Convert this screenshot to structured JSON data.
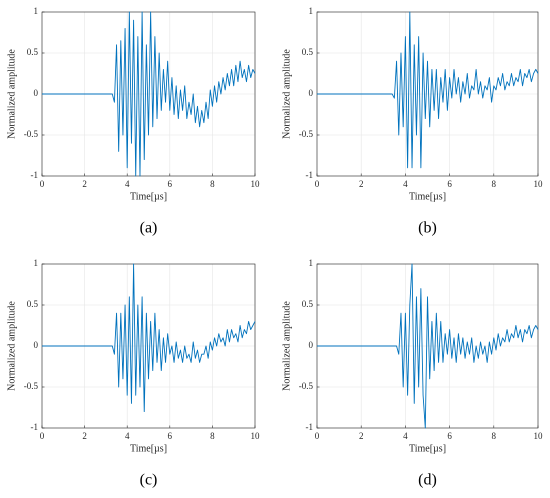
{
  "chart_data": [
    {
      "type": "line",
      "caption": "(a)",
      "xlabel": "Time[µs]",
      "ylabel": "Normalized amplitude",
      "color": "#0072bd",
      "grid": true,
      "xlim": [
        0,
        10
      ],
      "xticks": [
        0,
        2,
        4,
        6,
        8,
        10
      ],
      "ylim": [
        -1,
        1
      ],
      "yticks": [
        -1,
        -0.5,
        0,
        0.5,
        1
      ],
      "x": [
        0,
        3.3,
        3.4,
        3.5,
        3.6,
        3.7,
        3.8,
        3.9,
        4.0,
        4.1,
        4.2,
        4.3,
        4.4,
        4.5,
        4.6,
        4.7,
        4.8,
        4.9,
        5.0,
        5.1,
        5.2,
        5.3,
        5.4,
        5.5,
        5.6,
        5.7,
        5.8,
        5.9,
        6.0,
        6.1,
        6.2,
        6.3,
        6.4,
        6.5,
        6.6,
        6.7,
        6.8,
        6.9,
        7.0,
        7.1,
        7.2,
        7.3,
        7.4,
        7.5,
        7.6,
        7.7,
        7.8,
        7.9,
        8.0,
        8.1,
        8.2,
        8.3,
        8.4,
        8.5,
        8.6,
        8.7,
        8.8,
        8.9,
        9.0,
        9.1,
        9.2,
        9.3,
        9.4,
        9.5,
        9.6,
        9.7,
        9.8,
        9.9,
        10.0
      ],
      "values": [
        0,
        0,
        -0.1,
        0.6,
        -0.7,
        0.65,
        -0.5,
        0.8,
        -0.9,
        1,
        -0.6,
        0.9,
        -1,
        0.7,
        -1,
        1,
        -0.8,
        0.6,
        -0.5,
        1,
        -0.4,
        0.7,
        -0.3,
        0.5,
        -0.2,
        0.3,
        -0.1,
        0.4,
        -0.2,
        0.2,
        -0.25,
        0.1,
        -0.3,
        0.05,
        -0.2,
        0.1,
        -0.3,
        -0.1,
        -0.25,
        0,
        -0.35,
        -0.15,
        -0.4,
        -0.2,
        -0.35,
        -0.1,
        -0.3,
        0.05,
        -0.15,
        0.1,
        -0.1,
        0.15,
        0,
        0.2,
        0.05,
        0.25,
        0.1,
        0.3,
        0.1,
        0.35,
        0.15,
        0.4,
        0.2,
        0.3,
        0.15,
        0.35,
        0.2,
        0.3,
        0.25
      ]
    },
    {
      "type": "line",
      "caption": "(b)",
      "xlabel": "Time[µs]",
      "ylabel": "Normalized amplitude",
      "color": "#0072bd",
      "grid": true,
      "xlim": [
        0,
        10
      ],
      "xticks": [
        0,
        2,
        4,
        6,
        8,
        10
      ],
      "ylim": [
        -1,
        1
      ],
      "yticks": [
        -1,
        -0.5,
        0,
        0.5,
        1
      ],
      "x": [
        0,
        3.3,
        3.4,
        3.5,
        3.6,
        3.7,
        3.8,
        3.9,
        4.0,
        4.1,
        4.2,
        4.3,
        4.4,
        4.5,
        4.6,
        4.7,
        4.8,
        4.9,
        5.0,
        5.1,
        5.2,
        5.3,
        5.4,
        5.5,
        5.6,
        5.7,
        5.8,
        5.9,
        6.0,
        6.1,
        6.2,
        6.3,
        6.4,
        6.5,
        6.6,
        6.7,
        6.8,
        6.9,
        7.0,
        7.1,
        7.2,
        7.3,
        7.4,
        7.5,
        7.6,
        7.7,
        7.8,
        7.9,
        8.0,
        8.1,
        8.2,
        8.3,
        8.4,
        8.5,
        8.6,
        8.7,
        8.8,
        8.9,
        9.0,
        9.1,
        9.2,
        9.3,
        9.4,
        9.5,
        9.6,
        9.7,
        9.8,
        9.9,
        10.0
      ],
      "values": [
        0,
        0,
        0,
        -0.05,
        0.4,
        -0.5,
        0.5,
        -0.4,
        0.7,
        -0.9,
        1,
        -0.9,
        0.6,
        -0.5,
        0.7,
        -0.9,
        0.5,
        -0.3,
        0.4,
        -0.4,
        0.3,
        -0.2,
        0.3,
        -0.3,
        0.2,
        -0.1,
        0.3,
        -0.2,
        0.2,
        -0.05,
        0.3,
        0,
        0.2,
        -0.1,
        0.15,
        0,
        0.25,
        -0.05,
        0.1,
        0.05,
        0.3,
        0,
        0.15,
        -0.05,
        0.1,
        0.05,
        0.2,
        -0.1,
        0.1,
        0.05,
        0.2,
        0.1,
        0.25,
        0.05,
        0.15,
        0.1,
        0.25,
        0.1,
        0.2,
        0.15,
        0.3,
        0.1,
        0.25,
        0.2,
        0.3,
        0.15,
        0.25,
        0.3,
        0.25
      ]
    },
    {
      "type": "line",
      "caption": "(c)",
      "xlabel": "Time[µs]",
      "ylabel": "Normalized amplitude",
      "color": "#0072bd",
      "grid": true,
      "xlim": [
        0,
        10
      ],
      "xticks": [
        0,
        2,
        4,
        6,
        8,
        10
      ],
      "ylim": [
        -1,
        1
      ],
      "yticks": [
        -1,
        -0.5,
        0,
        0.5,
        1
      ],
      "x": [
        0,
        3.3,
        3.4,
        3.5,
        3.6,
        3.7,
        3.8,
        3.9,
        4.0,
        4.1,
        4.2,
        4.3,
        4.4,
        4.5,
        4.6,
        4.7,
        4.8,
        4.9,
        5.0,
        5.1,
        5.2,
        5.3,
        5.4,
        5.5,
        5.6,
        5.7,
        5.8,
        5.9,
        6.0,
        6.1,
        6.2,
        6.3,
        6.4,
        6.5,
        6.6,
        6.7,
        6.8,
        6.9,
        7.0,
        7.1,
        7.2,
        7.3,
        7.4,
        7.5,
        7.6,
        7.7,
        7.8,
        7.9,
        8.0,
        8.1,
        8.2,
        8.3,
        8.4,
        8.5,
        8.6,
        8.7,
        8.8,
        8.9,
        9.0,
        9.1,
        9.2,
        9.3,
        9.4,
        9.5,
        9.6,
        9.7,
        9.8,
        9.9,
        10.0
      ],
      "values": [
        0,
        0,
        -0.1,
        0.4,
        -0.5,
        0.4,
        -0.4,
        0.5,
        -0.6,
        0.6,
        -0.7,
        1,
        -0.6,
        0.5,
        -0.5,
        0.6,
        -0.8,
        0.4,
        -0.4,
        0.3,
        -0.3,
        0.4,
        -0.2,
        0.2,
        -0.3,
        0.1,
        -0.2,
        0.15,
        -0.1,
        0,
        -0.2,
        0.05,
        -0.15,
        -0.05,
        -0.2,
        0,
        -0.15,
        -0.1,
        -0.2,
        0.05,
        -0.15,
        -0.05,
        -0.2,
        -0.1,
        -0.1,
        0,
        -0.15,
        0.05,
        -0.05,
        0.1,
        0,
        0.15,
        0.05,
        0.1,
        0,
        0.2,
        0.05,
        0.2,
        0.1,
        0.15,
        0.05,
        0.25,
        0.1,
        0.2,
        0.15,
        0.3,
        0.2,
        0.25,
        0.3
      ]
    },
    {
      "type": "line",
      "caption": "(d)",
      "xlabel": "Time[µs]",
      "ylabel": "Normalized amplitude",
      "color": "#0072bd",
      "grid": true,
      "xlim": [
        0,
        10
      ],
      "xticks": [
        0,
        2,
        4,
        6,
        8,
        10
      ],
      "ylim": [
        -1,
        1
      ],
      "yticks": [
        -1,
        -0.5,
        0,
        0.5,
        1
      ],
      "x": [
        0,
        3.3,
        3.4,
        3.5,
        3.6,
        3.7,
        3.8,
        3.9,
        4.0,
        4.1,
        4.2,
        4.3,
        4.4,
        4.5,
        4.6,
        4.7,
        4.8,
        4.9,
        5.0,
        5.1,
        5.2,
        5.3,
        5.4,
        5.5,
        5.6,
        5.7,
        5.8,
        5.9,
        6.0,
        6.1,
        6.2,
        6.3,
        6.4,
        6.5,
        6.6,
        6.7,
        6.8,
        6.9,
        7.0,
        7.1,
        7.2,
        7.3,
        7.4,
        7.5,
        7.6,
        7.7,
        7.8,
        7.9,
        8.0,
        8.1,
        8.2,
        8.3,
        8.4,
        8.5,
        8.6,
        8.7,
        8.8,
        8.9,
        9.0,
        9.1,
        9.2,
        9.3,
        9.4,
        9.5,
        9.6,
        9.7,
        9.8,
        9.9,
        10.0
      ],
      "values": [
        0,
        0,
        0,
        0,
        0,
        -0.1,
        0.4,
        -0.5,
        0.4,
        -0.6,
        0.5,
        1,
        -0.7,
        0.6,
        -0.5,
        0.7,
        -0.6,
        -1,
        0.6,
        -0.4,
        0.3,
        -0.3,
        0.4,
        -0.2,
        0.3,
        -0.2,
        0.15,
        -0.1,
        0.2,
        -0.15,
        0.1,
        -0.2,
        0.15,
        -0.1,
        0.1,
        -0.15,
        0.05,
        -0.1,
        0.1,
        -0.2,
        0,
        -0.15,
        0.05,
        -0.1,
        0,
        -0.2,
        0.05,
        -0.1,
        0.1,
        -0.05,
        0.15,
        0,
        0.1,
        0.05,
        0.2,
        0.05,
        0.15,
        0.1,
        0.25,
        0.1,
        0.2,
        0.05,
        0.2,
        0.15,
        0.25,
        0.1,
        0.2,
        0.25,
        0.2
      ]
    }
  ]
}
